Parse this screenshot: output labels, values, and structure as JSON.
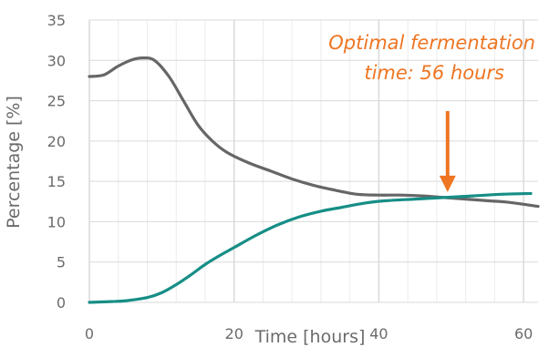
{
  "chart_data": {
    "type": "line",
    "title": "",
    "xlabel": "Time [hours]",
    "ylabel": "Percentage [%]",
    "xlim": [
      0,
      62
    ],
    "ylim": [
      0,
      35
    ],
    "xticks": [
      0,
      20,
      40,
      60
    ],
    "yticks": [
      0,
      5,
      10,
      15,
      20,
      25,
      30,
      35
    ],
    "grid": true,
    "x_minor_step": 4,
    "series": [
      {
        "color": "#666666",
        "points": [
          [
            0,
            28
          ],
          [
            2,
            28.2
          ],
          [
            4,
            29.3
          ],
          [
            6,
            30.1
          ],
          [
            7.5,
            30.3
          ],
          [
            9,
            30
          ],
          [
            11,
            28
          ],
          [
            13,
            25
          ],
          [
            15,
            22
          ],
          [
            17,
            20
          ],
          [
            19,
            18.6
          ],
          [
            22,
            17.3
          ],
          [
            25,
            16.3
          ],
          [
            28,
            15.3
          ],
          [
            31,
            14.5
          ],
          [
            34,
            13.9
          ],
          [
            37,
            13.4
          ],
          [
            40,
            13.3
          ],
          [
            43,
            13.3
          ],
          [
            46,
            13.2
          ],
          [
            49,
            13
          ],
          [
            52,
            12.8
          ],
          [
            55,
            12.6
          ],
          [
            58,
            12.4
          ],
          [
            62,
            11.9
          ]
        ]
      },
      {
        "color": "#168e86",
        "points": [
          [
            0,
            0
          ],
          [
            3,
            0.1
          ],
          [
            5,
            0.2
          ],
          [
            8,
            0.6
          ],
          [
            10,
            1.2
          ],
          [
            12,
            2.2
          ],
          [
            14,
            3.4
          ],
          [
            16,
            4.7
          ],
          [
            18,
            5.8
          ],
          [
            20,
            6.8
          ],
          [
            23,
            8.3
          ],
          [
            26,
            9.6
          ],
          [
            29,
            10.6
          ],
          [
            32,
            11.3
          ],
          [
            35,
            11.8
          ],
          [
            38,
            12.3
          ],
          [
            41,
            12.6
          ],
          [
            45,
            12.8
          ],
          [
            49,
            13
          ],
          [
            53,
            13.2
          ],
          [
            57,
            13.4
          ],
          [
            61,
            13.5
          ]
        ]
      }
    ],
    "annotation": {
      "lines": [
        "Optimal fermentation",
        "time: 56 hours"
      ],
      "color": "#ee7623",
      "arrow_to": [
        49.5,
        13
      ]
    }
  }
}
